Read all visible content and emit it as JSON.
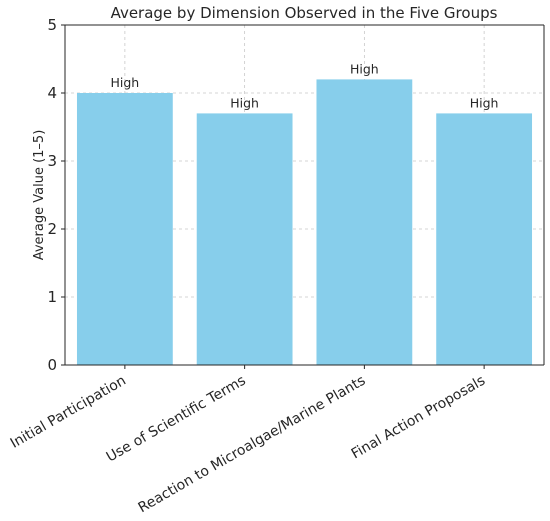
{
  "chart_data": {
    "type": "bar",
    "title": "Average by Dimension Observed in the Five Groups",
    "xlabel": "",
    "ylabel": "Average Value (1–5)",
    "ylim": [
      0,
      5
    ],
    "yticks": [
      "0",
      "1",
      "2",
      "3",
      "4",
      "5"
    ],
    "grid": true,
    "categories": [
      "Initial Participation",
      "Use of Scientific Terms",
      "Reaction to Microalgae/Marine Plants",
      "Final Action Proposals"
    ],
    "values": [
      4.0,
      3.7,
      4.2,
      3.7
    ],
    "data_labels": [
      "High",
      "High",
      "High",
      "High"
    ],
    "bar_color": "#87ceeb"
  }
}
